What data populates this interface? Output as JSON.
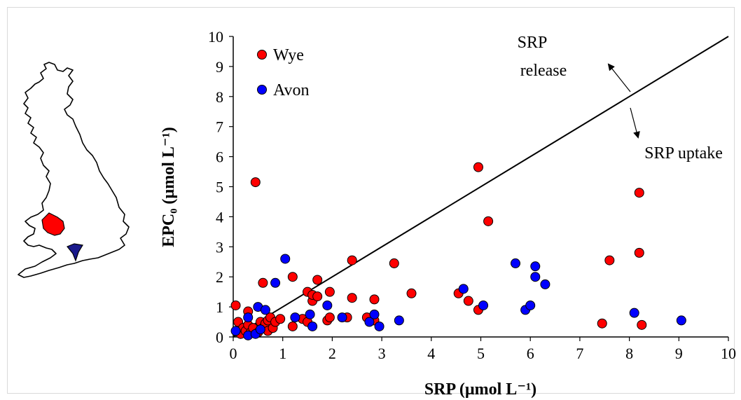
{
  "chart_data": {
    "type": "scatter",
    "xlabel": "SRP (µmol L⁻¹)",
    "ylabel": "EPC₀ (µmol L⁻¹)",
    "xlim": [
      0,
      10
    ],
    "ylim": [
      0,
      10
    ],
    "x_ticks": [
      "0",
      "1",
      "2",
      "3",
      "4",
      "5",
      "6",
      "7",
      "8",
      "9",
      "10"
    ],
    "y_ticks": [
      "0",
      "1",
      "2",
      "3",
      "4",
      "5",
      "6",
      "7",
      "8",
      "9",
      "10"
    ],
    "grid": false,
    "legend_position": "top-left",
    "reference_line": {
      "from": [
        0,
        0
      ],
      "to": [
        10,
        10
      ]
    },
    "annotations": {
      "release_line1": "SRP",
      "release_line2": "release",
      "uptake": "SRP uptake"
    },
    "series": [
      {
        "name": "Wye",
        "color": "#ff0000",
        "points": [
          [
            0.05,
            1.05
          ],
          [
            0.1,
            0.5
          ],
          [
            0.1,
            0.2
          ],
          [
            0.15,
            0.1
          ],
          [
            0.2,
            0.3
          ],
          [
            0.25,
            0.2
          ],
          [
            0.3,
            0.4
          ],
          [
            0.3,
            0.85
          ],
          [
            0.35,
            0.15
          ],
          [
            0.4,
            0.3
          ],
          [
            0.45,
            5.15
          ],
          [
            0.5,
            0.15
          ],
          [
            0.55,
            0.5
          ],
          [
            0.6,
            1.8
          ],
          [
            0.6,
            0.3
          ],
          [
            0.65,
            0.45
          ],
          [
            0.7,
            0.55
          ],
          [
            0.7,
            0.2
          ],
          [
            0.75,
            0.65
          ],
          [
            0.8,
            0.3
          ],
          [
            0.85,
            0.5
          ],
          [
            0.95,
            0.6
          ],
          [
            1.2,
            2.0
          ],
          [
            1.2,
            0.35
          ],
          [
            1.4,
            0.6
          ],
          [
            1.5,
            0.5
          ],
          [
            1.5,
            1.5
          ],
          [
            1.6,
            1.2
          ],
          [
            1.6,
            1.4
          ],
          [
            1.7,
            1.35
          ],
          [
            1.7,
            1.9
          ],
          [
            1.9,
            0.55
          ],
          [
            1.95,
            0.65
          ],
          [
            1.95,
            1.5
          ],
          [
            2.3,
            0.65
          ],
          [
            2.4,
            2.55
          ],
          [
            2.4,
            1.3
          ],
          [
            2.7,
            0.65
          ],
          [
            2.85,
            1.25
          ],
          [
            2.85,
            0.55
          ],
          [
            3.25,
            2.45
          ],
          [
            3.6,
            1.45
          ],
          [
            4.55,
            1.45
          ],
          [
            4.75,
            1.2
          ],
          [
            4.95,
            0.9
          ],
          [
            4.95,
            5.65
          ],
          [
            5.15,
            3.85
          ],
          [
            7.45,
            0.45
          ],
          [
            7.6,
            2.55
          ],
          [
            8.2,
            2.8
          ],
          [
            8.2,
            4.8
          ],
          [
            8.25,
            0.4
          ]
        ]
      },
      {
        "name": "Avon",
        "color": "#0000ff",
        "points": [
          [
            0.05,
            0.2
          ],
          [
            0.3,
            0.65
          ],
          [
            0.3,
            0.05
          ],
          [
            0.45,
            0.1
          ],
          [
            0.5,
            1.0
          ],
          [
            0.55,
            0.25
          ],
          [
            0.65,
            0.9
          ],
          [
            0.85,
            1.8
          ],
          [
            1.05,
            2.6
          ],
          [
            1.25,
            0.65
          ],
          [
            1.55,
            0.75
          ],
          [
            1.6,
            0.35
          ],
          [
            1.9,
            1.05
          ],
          [
            2.2,
            0.65
          ],
          [
            2.75,
            0.5
          ],
          [
            2.85,
            0.75
          ],
          [
            2.95,
            0.35
          ],
          [
            3.35,
            0.55
          ],
          [
            4.65,
            1.6
          ],
          [
            5.05,
            1.05
          ],
          [
            5.7,
            2.45
          ],
          [
            5.9,
            0.9
          ],
          [
            6.0,
            1.05
          ],
          [
            6.1,
            2.0
          ],
          [
            6.1,
            2.35
          ],
          [
            6.3,
            1.75
          ],
          [
            8.1,
            0.8
          ],
          [
            9.05,
            0.55
          ]
        ]
      }
    ]
  },
  "map": {
    "wye_color": "#ff0000",
    "avon_color": "#1a1a8c"
  }
}
